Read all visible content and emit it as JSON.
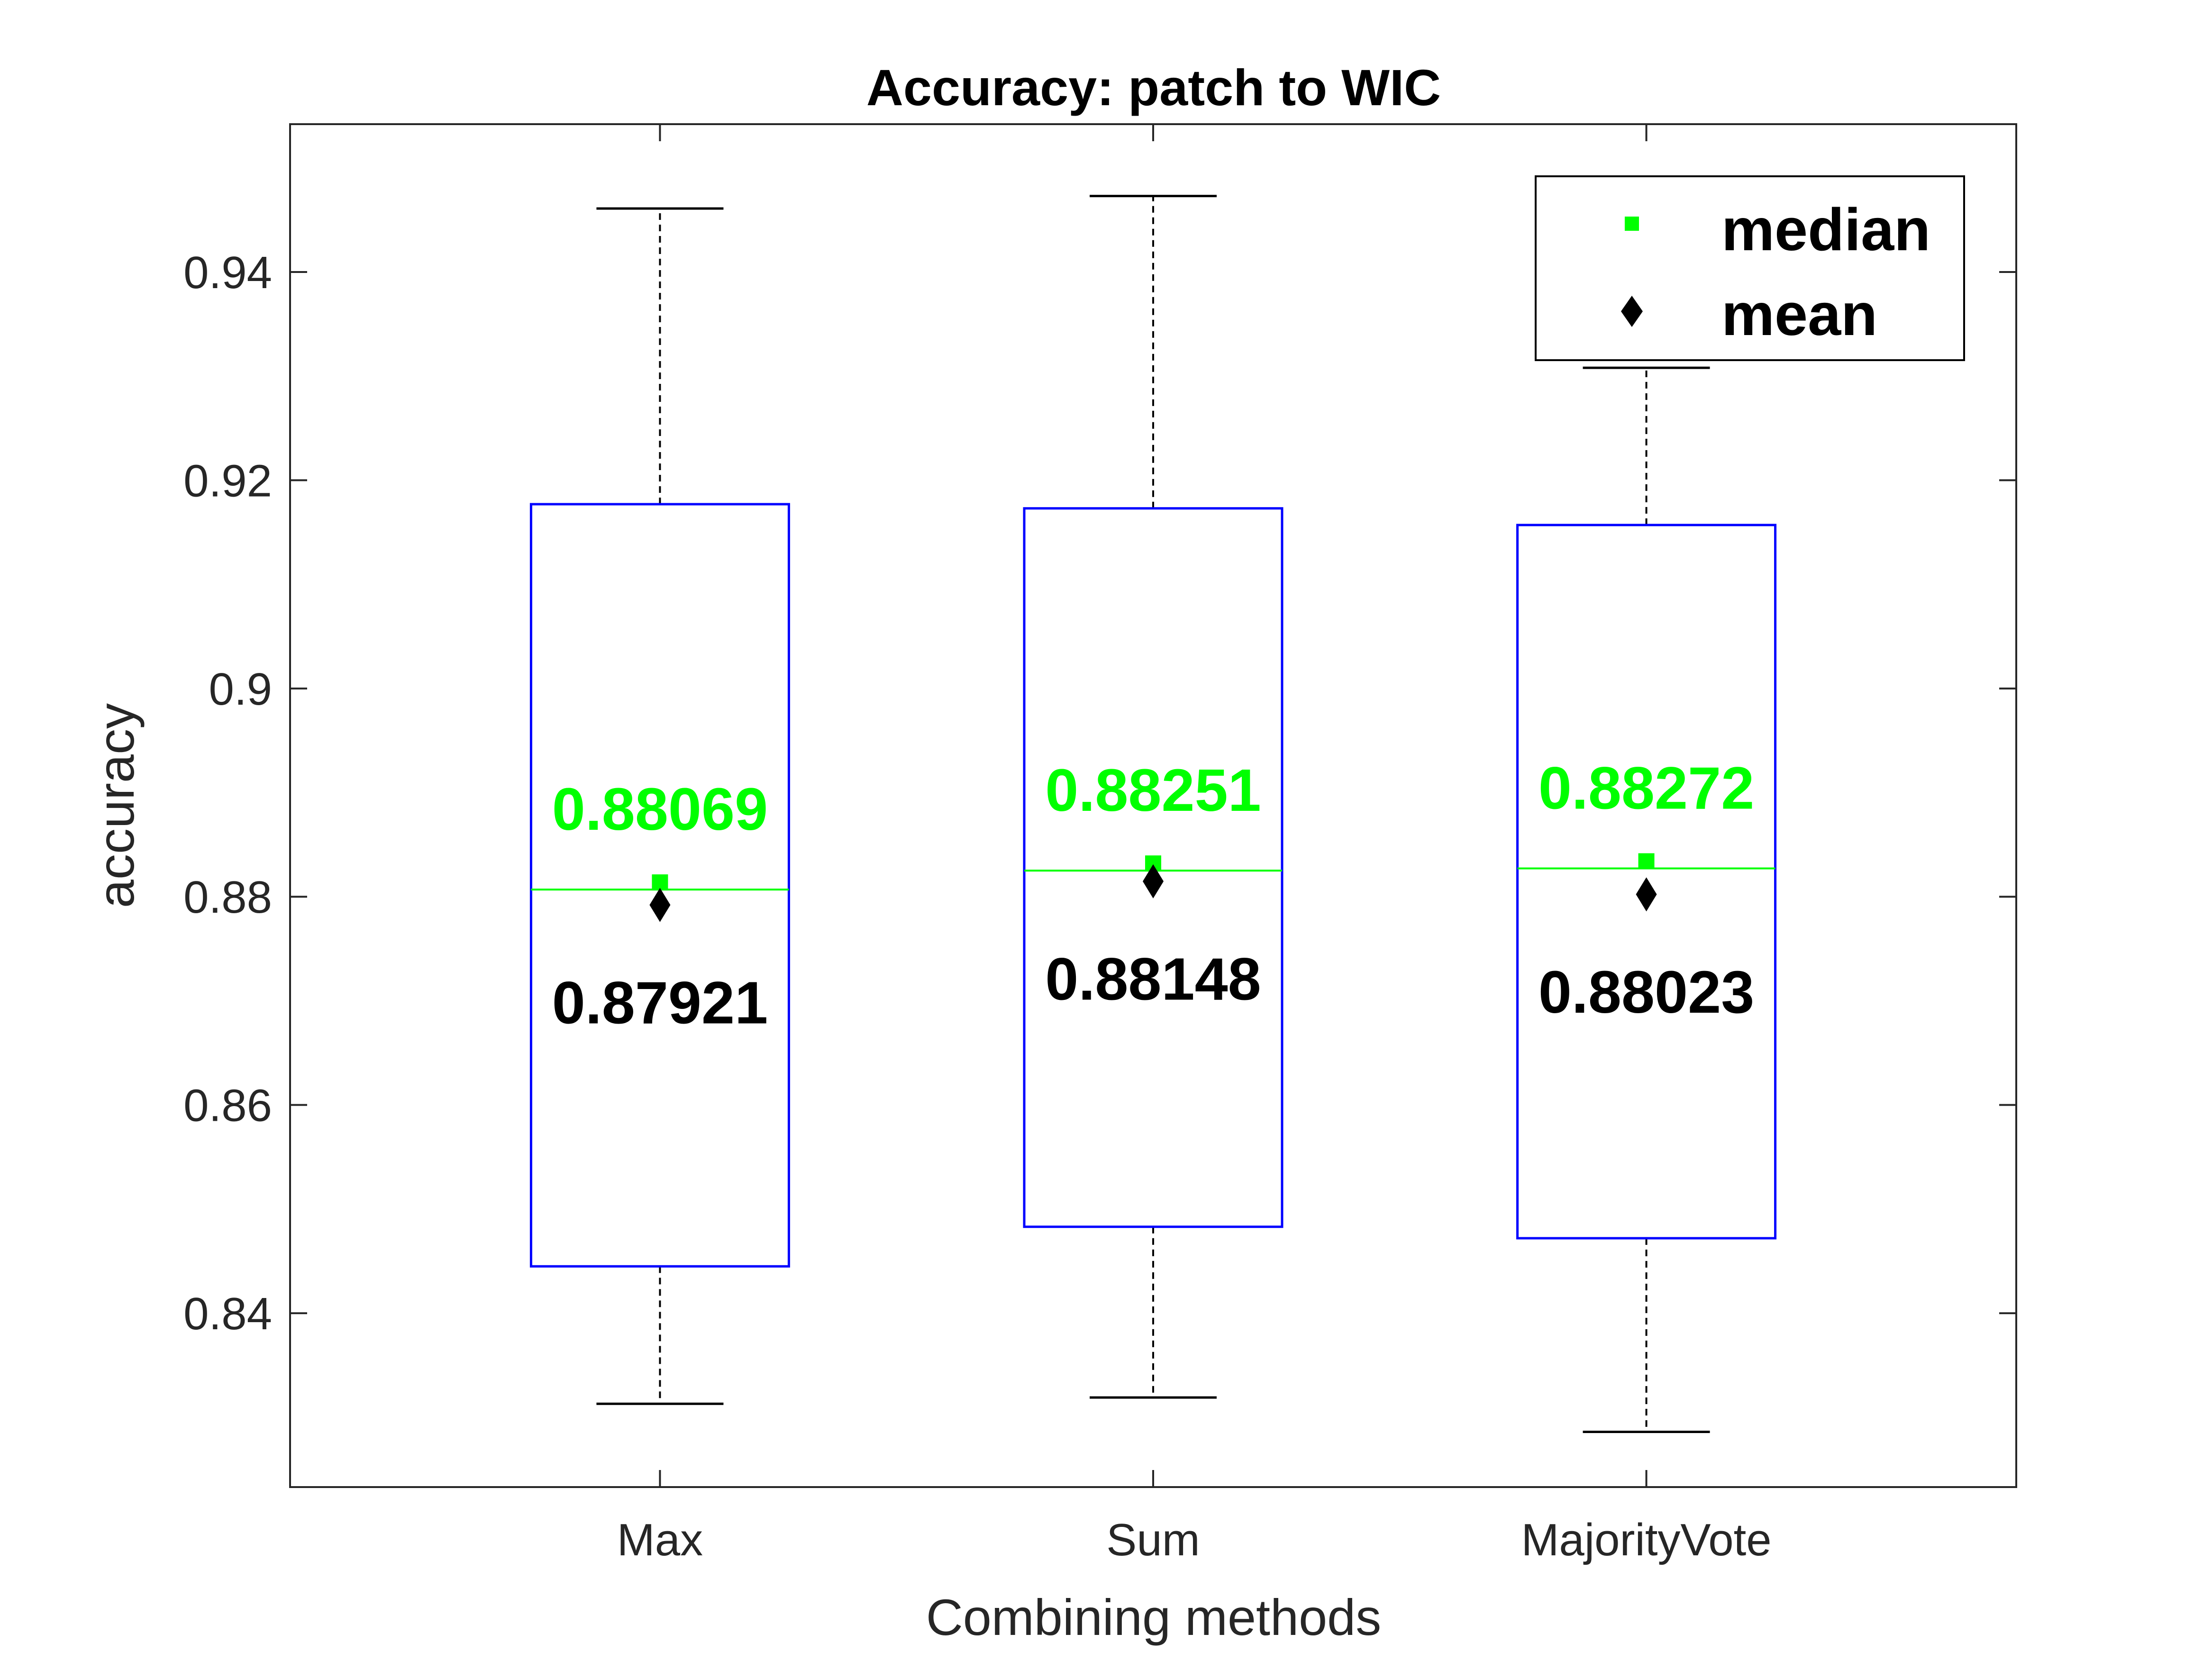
{
  "chart_data": {
    "type": "box",
    "title": "Accuracy: patch to WIC",
    "xlabel": "Combining methods",
    "ylabel": "accuracy",
    "categories": [
      "Max",
      "Sum",
      "MajorityVote"
    ],
    "ylim": [
      0.8233,
      0.9542
    ],
    "yticks": [
      0.84,
      0.86,
      0.88,
      0.9,
      0.92,
      0.94
    ],
    "ytick_labels": [
      "0.84",
      "0.86",
      "0.88",
      "0.9",
      "0.92",
      "0.94"
    ],
    "boxes": [
      {
        "whisker_low": 0.8313,
        "q1": 0.8445,
        "median": 0.88069,
        "q3": 0.9177,
        "whisker_high": 0.9461,
        "mean": 0.87921
      },
      {
        "whisker_low": 0.8319,
        "q1": 0.8483,
        "median": 0.88251,
        "q3": 0.9173,
        "whisker_high": 0.9473,
        "mean": 0.88148
      },
      {
        "whisker_low": 0.8286,
        "q1": 0.8472,
        "median": 0.88272,
        "q3": 0.9157,
        "whisker_high": 0.9308,
        "mean": 0.88023
      }
    ],
    "median_labels": [
      "0.88069",
      "0.88251",
      "0.88272"
    ],
    "mean_labels": [
      "0.87921",
      "0.88148",
      "0.88023"
    ],
    "legend": {
      "position": "top-right",
      "entries": [
        {
          "label": "median",
          "marker": "square",
          "color": "#00ff00"
        },
        {
          "label": "mean",
          "marker": "diamond",
          "color": "#000000"
        }
      ]
    },
    "colors": {
      "box": "#0000ff",
      "median_line": "#00ff00",
      "median_label": "#00ff00",
      "mean_label": "#000000",
      "whisker": "#000000"
    },
    "grid": false
  }
}
